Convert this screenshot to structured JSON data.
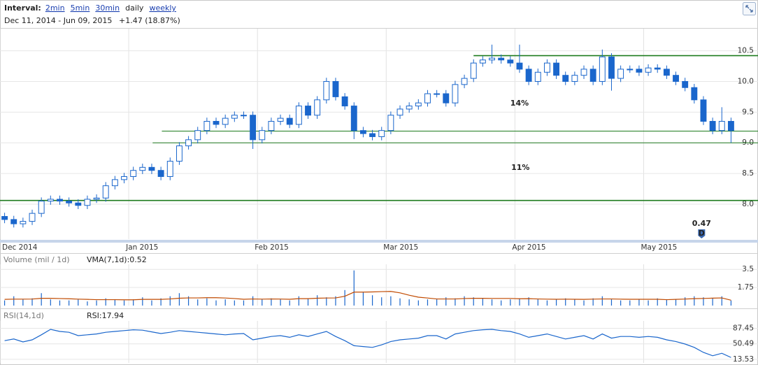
{
  "header": {
    "interval_label": "Interval:",
    "intervals": [
      "2min",
      "5min",
      "30min",
      "daily",
      "weekly"
    ],
    "active_interval": 3,
    "range": "Dec 11, 2014  - Jun 09, 2015",
    "change": "+1.47 (18.87%)",
    "change_color": "#1e8a1e"
  },
  "chart_data": [
    {
      "type": "candlestick",
      "color": "#1a66cc",
      "grid": true,
      "xlim": [
        0,
        80
      ],
      "xticks": [
        {
          "value": 0,
          "label": "Dec 2014"
        },
        {
          "value": 14,
          "label": "Jan 2015"
        },
        {
          "value": 28,
          "label": "Feb 2015"
        },
        {
          "value": 42,
          "label": "Mar 2015"
        },
        {
          "value": 56,
          "label": "Apr 2015"
        },
        {
          "value": 70,
          "label": "May 2015"
        }
      ],
      "ylim": [
        7.43,
        10.86
      ],
      "yticks": [
        {
          "value": 8,
          "label": "8.0"
        },
        8.5,
        {
          "value": 9,
          "label": "9.0"
        },
        9.5,
        {
          "value": 10,
          "label": "10.0"
        },
        10.5
      ],
      "open": [
        7.8,
        7.75,
        7.68,
        7.72,
        7.85,
        8.05,
        8.08,
        8.05,
        8.02,
        7.98,
        8.08,
        8.1,
        8.3,
        8.4,
        8.45,
        8.55,
        8.6,
        8.55,
        8.45,
        8.7,
        8.95,
        9.05,
        9.2,
        9.35,
        9.3,
        9.4,
        9.45,
        9.45,
        9.05,
        9.2,
        9.35,
        9.4,
        9.3,
        9.6,
        9.45,
        9.7,
        10.0,
        9.75,
        9.6,
        9.2,
        9.15,
        9.1,
        9.2,
        9.45,
        9.55,
        9.6,
        9.65,
        9.8,
        9.8,
        9.65,
        9.95,
        10.05,
        10.3,
        10.35,
        10.38,
        10.35,
        10.3,
        10.2,
        10.0,
        10.15,
        10.3,
        10.1,
        10.0,
        10.1,
        10.2,
        10.0,
        10.4,
        10.05,
        10.2,
        10.2,
        10.15,
        10.22,
        10.2,
        10.1,
        10.0,
        9.9,
        9.7,
        9.35,
        9.2,
        9.35
      ],
      "high": [
        7.86,
        7.81,
        7.78,
        7.91,
        8.11,
        8.14,
        8.14,
        8.11,
        8.08,
        8.14,
        8.16,
        8.36,
        8.46,
        8.51,
        8.61,
        8.66,
        8.66,
        8.61,
        8.76,
        9.01,
        9.11,
        9.26,
        9.41,
        9.41,
        9.46,
        9.51,
        9.51,
        9.51,
        9.26,
        9.41,
        9.46,
        9.46,
        9.66,
        9.66,
        9.76,
        10.06,
        10.06,
        9.81,
        9.66,
        9.26,
        9.21,
        9.26,
        9.51,
        9.61,
        9.66,
        9.71,
        9.86,
        9.86,
        9.86,
        10.01,
        10.11,
        10.36,
        10.41,
        10.6,
        10.44,
        10.41,
        10.6,
        10.26,
        10.21,
        10.36,
        10.36,
        10.16,
        10.16,
        10.26,
        10.26,
        10.52,
        10.46,
        10.26,
        10.26,
        10.26,
        10.28,
        10.28,
        10.26,
        10.16,
        10.06,
        9.96,
        9.76,
        9.41,
        9.58,
        9.41
      ],
      "low": [
        7.69,
        7.62,
        7.62,
        7.66,
        7.79,
        7.99,
        7.99,
        7.96,
        7.92,
        7.92,
        8.02,
        8.04,
        8.24,
        8.34,
        8.39,
        8.49,
        8.49,
        8.39,
        8.39,
        8.64,
        8.89,
        8.99,
        9.14,
        9.24,
        9.24,
        9.34,
        9.39,
        8.9,
        8.99,
        9.14,
        9.29,
        9.24,
        9.24,
        9.39,
        9.39,
        9.64,
        9.69,
        9.54,
        9.06,
        9.09,
        9.04,
        9.04,
        9.14,
        9.39,
        9.49,
        9.54,
        9.59,
        9.74,
        9.59,
        9.59,
        9.89,
        9.99,
        10.24,
        10.29,
        10.29,
        10.24,
        10.14,
        9.94,
        9.94,
        10.09,
        10.04,
        9.94,
        9.94,
        10.04,
        9.94,
        9.94,
        9.85,
        9.99,
        10.14,
        10.09,
        10.09,
        10.14,
        10.04,
        9.94,
        9.84,
        9.64,
        9.29,
        9.14,
        9.14,
        9.0
      ],
      "close": [
        7.75,
        7.68,
        7.72,
        7.85,
        8.05,
        8.08,
        8.05,
        8.02,
        7.98,
        8.08,
        8.1,
        8.3,
        8.4,
        8.45,
        8.55,
        8.6,
        8.55,
        8.45,
        8.7,
        8.95,
        9.05,
        9.2,
        9.35,
        9.3,
        9.4,
        9.45,
        9.45,
        9.05,
        9.2,
        9.35,
        9.4,
        9.3,
        9.6,
        9.45,
        9.7,
        10.0,
        9.75,
        9.6,
        9.2,
        9.15,
        9.1,
        9.2,
        9.45,
        9.55,
        9.6,
        9.65,
        9.8,
        9.8,
        9.65,
        9.95,
        10.05,
        10.3,
        10.35,
        10.38,
        10.35,
        10.3,
        10.2,
        10.0,
        10.15,
        10.3,
        10.1,
        10.0,
        10.1,
        10.2,
        10.0,
        10.4,
        10.05,
        10.2,
        10.2,
        10.15,
        10.22,
        10.2,
        10.1,
        10.0,
        9.9,
        9.7,
        9.35,
        9.2,
        9.35,
        9.2
      ],
      "level_color": "#1e7b1e",
      "levels": [
        {
          "value": 10.42,
          "start": 51.5
        },
        {
          "value": 9.19,
          "start": 17.6
        },
        {
          "value": 9.0,
          "start": 16.6
        },
        {
          "value": 8.06,
          "start": 0
        }
      ],
      "annotations": [
        {
          "text": "14%",
          "x": 56.5,
          "y": 9.64
        },
        {
          "text": "11%",
          "x": 56.6,
          "y": 8.59
        }
      ],
      "dividend": {
        "value": 0.47,
        "label": "D",
        "x": 76.3
      }
    },
    {
      "type": "bar",
      "title": "Volume (mil / 1d)",
      "grid": true,
      "ylim": [
        0,
        3.99
      ],
      "yticks": [
        1.75,
        3.5
      ],
      "series": [
        {
          "color": "#1a66cc",
          "values": [
            0.5,
            0.9,
            0.6,
            0.7,
            1.2,
            0.6,
            0.5,
            0.5,
            0.6,
            0.4,
            0.5,
            0.7,
            0.6,
            0.5,
            0.6,
            0.8,
            0.5,
            0.7,
            0.9,
            1.2,
            0.9,
            0.6,
            0.7,
            0.5,
            0.6,
            0.5,
            0.5,
            0.9,
            0.6,
            0.7,
            0.6,
            0.5,
            0.9,
            0.7,
            1.0,
            0.8,
            0.9,
            1.5,
            3.4,
            1.3,
            1.0,
            0.8,
            0.9,
            0.7,
            0.6,
            0.5,
            0.6,
            0.6,
            0.8,
            0.7,
            0.9,
            0.8,
            0.7,
            0.6,
            0.5,
            0.6,
            0.7,
            0.8,
            0.6,
            0.5,
            0.6,
            0.7,
            0.6,
            0.5,
            0.7,
            0.9,
            0.6,
            0.5,
            0.5,
            0.6,
            0.5,
            0.7,
            0.6,
            0.6,
            0.8,
            0.9,
            0.8,
            0.7,
            0.9,
            0.5
          ]
        },
        {
          "name": "VMA(7,1d):0.52",
          "type": "line",
          "color": "#c04a00",
          "values": [
            0.6,
            0.62,
            0.62,
            0.63,
            0.7,
            0.7,
            0.68,
            0.66,
            0.62,
            0.6,
            0.57,
            0.57,
            0.57,
            0.56,
            0.56,
            0.6,
            0.6,
            0.6,
            0.64,
            0.71,
            0.74,
            0.74,
            0.76,
            0.76,
            0.73,
            0.68,
            0.61,
            0.64,
            0.62,
            0.64,
            0.63,
            0.61,
            0.67,
            0.67,
            0.71,
            0.73,
            0.74,
            0.9,
            1.3,
            1.3,
            1.32,
            1.35,
            1.37,
            1.23,
            1.0,
            0.81,
            0.73,
            0.64,
            0.64,
            0.64,
            0.68,
            0.7,
            0.7,
            0.69,
            0.69,
            0.69,
            0.66,
            0.67,
            0.64,
            0.62,
            0.61,
            0.62,
            0.61,
            0.6,
            0.62,
            0.64,
            0.64,
            0.62,
            0.61,
            0.61,
            0.61,
            0.61,
            0.57,
            0.6,
            0.63,
            0.67,
            0.69,
            0.72,
            0.74,
            0.52
          ]
        }
      ]
    },
    {
      "type": "line",
      "title": "RSI(14,1d)",
      "grid": true,
      "ylim": [
        5,
        105
      ],
      "yticks": [
        13.53,
        50.49,
        87.45
      ],
      "series": [
        {
          "name": "RSI:17.94",
          "color": "#1a66cc",
          "values": [
            58,
            62,
            55,
            60,
            72,
            85,
            80,
            78,
            70,
            72,
            74,
            78,
            80,
            82,
            84,
            83,
            79,
            75,
            78,
            82,
            80,
            78,
            76,
            74,
            72,
            74,
            75,
            60,
            64,
            68,
            70,
            66,
            72,
            68,
            74,
            80,
            68,
            58,
            46,
            44,
            42,
            48,
            56,
            60,
            62,
            64,
            70,
            70,
            62,
            74,
            78,
            82,
            84,
            85,
            82,
            80,
            74,
            66,
            70,
            74,
            68,
            62,
            66,
            70,
            62,
            74,
            64,
            68,
            68,
            66,
            68,
            66,
            60,
            56,
            50,
            42,
            30,
            22,
            28,
            17.94
          ]
        }
      ]
    }
  ]
}
